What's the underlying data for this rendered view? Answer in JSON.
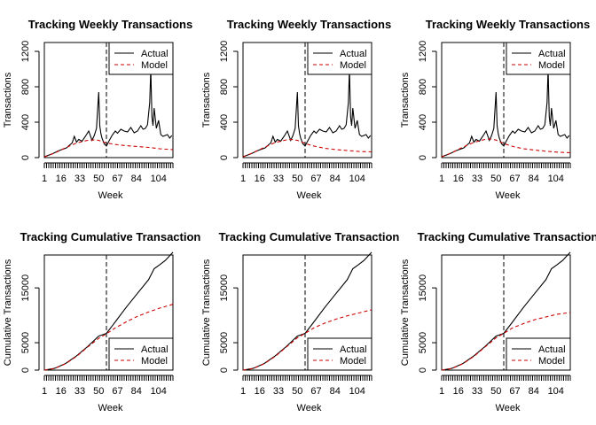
{
  "figure": {
    "background": "#ffffff"
  },
  "legend_labels": {
    "actual": "Actual",
    "model": "Model"
  },
  "colors": {
    "actual": "#000000",
    "model": "#cc0000",
    "split": "#000000"
  },
  "chart_data": [
    {
      "type": "line",
      "panel": "weekly-1",
      "title": "Tracking Weekly Transactions",
      "xlabel": "Week",
      "ylabel": "Transactions",
      "xticks": [
        1,
        16,
        33,
        50,
        67,
        84,
        104
      ],
      "yticks": [
        0,
        400,
        800,
        1200
      ],
      "xlim": [
        1,
        117
      ],
      "ylim": [
        0,
        1300
      ],
      "calibration_end_week": 57,
      "legend_position": "top-right",
      "series": [
        {
          "name": "Actual",
          "x": [
            1,
            5,
            9,
            13,
            17,
            21,
            24,
            26,
            28,
            30,
            32,
            35,
            38,
            41,
            44,
            46,
            48,
            50,
            51,
            52,
            53,
            55,
            57,
            59,
            62,
            65,
            67,
            70,
            73,
            76,
            79,
            82,
            85,
            88,
            90,
            92,
            94,
            96,
            97,
            98,
            99,
            100,
            102,
            104,
            106,
            108,
            110,
            112,
            114,
            116
          ],
          "values": [
            10,
            28,
            48,
            72,
            92,
            110,
            145,
            165,
            240,
            175,
            205,
            185,
            240,
            300,
            195,
            250,
            330,
            740,
            360,
            270,
            220,
            155,
            130,
            180,
            250,
            300,
            275,
            320,
            300,
            290,
            340,
            280,
            300,
            360,
            320,
            330,
            370,
            620,
            1000,
            460,
            360,
            560,
            330,
            420,
            260,
            240,
            250,
            260,
            220,
            250
          ]
        },
        {
          "name": "Model",
          "x": [
            1,
            10,
            20,
            30,
            40,
            45,
            50,
            53,
            57,
            62,
            67,
            75,
            85,
            95,
            105,
            117
          ],
          "values": [
            8,
            50,
            110,
            165,
            195,
            200,
            195,
            180,
            165,
            155,
            145,
            135,
            125,
            115,
            100,
            90
          ]
        }
      ]
    },
    {
      "type": "line",
      "panel": "weekly-2",
      "title": "Tracking Weekly Transactions",
      "xlabel": "Week",
      "ylabel": "Transactions",
      "xticks": [
        1,
        16,
        33,
        50,
        67,
        84,
        104
      ],
      "yticks": [
        0,
        400,
        800,
        1200
      ],
      "xlim": [
        1,
        117
      ],
      "ylim": [
        0,
        1300
      ],
      "calibration_end_week": 57,
      "legend_position": "top-right",
      "series": [
        {
          "name": "Actual",
          "x": [
            1,
            5,
            9,
            13,
            17,
            21,
            24,
            26,
            28,
            30,
            32,
            35,
            38,
            41,
            44,
            46,
            48,
            50,
            51,
            52,
            53,
            55,
            57,
            59,
            62,
            65,
            67,
            70,
            73,
            76,
            79,
            82,
            85,
            88,
            90,
            92,
            94,
            96,
            97,
            98,
            99,
            100,
            102,
            104,
            106,
            108,
            110,
            112,
            114,
            116
          ],
          "values": [
            10,
            28,
            48,
            72,
            92,
            110,
            145,
            165,
            240,
            175,
            205,
            185,
            240,
            300,
            195,
            250,
            330,
            740,
            360,
            270,
            220,
            155,
            130,
            180,
            250,
            300,
            275,
            320,
            300,
            290,
            340,
            280,
            300,
            360,
            320,
            330,
            370,
            620,
            1000,
            460,
            360,
            560,
            330,
            420,
            260,
            240,
            250,
            260,
            220,
            250
          ]
        },
        {
          "name": "Model",
          "x": [
            1,
            10,
            20,
            30,
            40,
            45,
            50,
            53,
            57,
            62,
            67,
            75,
            85,
            95,
            105,
            117
          ],
          "values": [
            8,
            55,
            115,
            170,
            200,
            205,
            195,
            180,
            160,
            140,
            125,
            105,
            90,
            80,
            70,
            65
          ]
        }
      ]
    },
    {
      "type": "line",
      "panel": "weekly-3",
      "title": "Tracking Weekly Transactions",
      "xlabel": "Week",
      "ylabel": "Transactions",
      "xticks": [
        1,
        16,
        33,
        50,
        67,
        84,
        104
      ],
      "yticks": [
        0,
        400,
        800,
        1200
      ],
      "xlim": [
        1,
        117
      ],
      "ylim": [
        0,
        1300
      ],
      "calibration_end_week": 57,
      "legend_position": "top-right",
      "series": [
        {
          "name": "Actual",
          "x": [
            1,
            5,
            9,
            13,
            17,
            21,
            24,
            26,
            28,
            30,
            32,
            35,
            38,
            41,
            44,
            46,
            48,
            50,
            51,
            52,
            53,
            55,
            57,
            59,
            62,
            65,
            67,
            70,
            73,
            76,
            79,
            82,
            85,
            88,
            90,
            92,
            94,
            96,
            97,
            98,
            99,
            100,
            102,
            104,
            106,
            108,
            110,
            112,
            114,
            116
          ],
          "values": [
            10,
            28,
            48,
            72,
            92,
            110,
            145,
            165,
            240,
            175,
            205,
            185,
            240,
            300,
            195,
            250,
            330,
            740,
            360,
            270,
            220,
            155,
            130,
            180,
            250,
            300,
            275,
            320,
            300,
            290,
            340,
            280,
            300,
            360,
            320,
            330,
            370,
            620,
            1000,
            460,
            360,
            560,
            330,
            420,
            260,
            240,
            250,
            260,
            220,
            250
          ]
        },
        {
          "name": "Model",
          "x": [
            1,
            10,
            20,
            30,
            40,
            45,
            50,
            53,
            57,
            62,
            67,
            75,
            85,
            95,
            105,
            117
          ],
          "values": [
            8,
            55,
            118,
            172,
            205,
            210,
            198,
            180,
            160,
            138,
            120,
            100,
            85,
            72,
            62,
            55
          ]
        }
      ]
    },
    {
      "type": "line",
      "panel": "cumulative-1",
      "title": "Tracking Cumulative Transaction",
      "xlabel": "Week",
      "ylabel": "Cumulative Transactions",
      "xticks": [
        1,
        16,
        33,
        50,
        67,
        84,
        104
      ],
      "yticks": [
        0,
        5000,
        15000
      ],
      "xlim": [
        1,
        117
      ],
      "ylim": [
        0,
        21000
      ],
      "calibration_end_week": 57,
      "legend_position": "bottom-right",
      "series": [
        {
          "name": "Actual",
          "x": [
            1,
            10,
            20,
            30,
            40,
            50,
            57,
            65,
            75,
            85,
            95,
            100,
            105,
            110,
            117
          ],
          "values": [
            0,
            300,
            1200,
            2600,
            4300,
            6200,
            6700,
            8800,
            11500,
            14000,
            16500,
            18500,
            19200,
            20000,
            21500
          ]
        },
        {
          "name": "Model",
          "x": [
            1,
            10,
            20,
            30,
            40,
            50,
            57,
            65,
            75,
            85,
            95,
            105,
            117
          ],
          "values": [
            0,
            280,
            1150,
            2500,
            4200,
            5800,
            6600,
            7700,
            8800,
            9800,
            10600,
            11300,
            12000
          ]
        }
      ]
    },
    {
      "type": "line",
      "panel": "cumulative-2",
      "title": "Tracking Cumulative Transaction",
      "xlabel": "Week",
      "ylabel": "Cumulative Transactions",
      "xticks": [
        1,
        16,
        33,
        50,
        67,
        84,
        104
      ],
      "yticks": [
        0,
        5000,
        15000
      ],
      "xlim": [
        1,
        117
      ],
      "ylim": [
        0,
        21000
      ],
      "calibration_end_week": 57,
      "legend_position": "bottom-right",
      "series": [
        {
          "name": "Actual",
          "x": [
            1,
            10,
            20,
            30,
            40,
            50,
            57,
            65,
            75,
            85,
            95,
            100,
            105,
            110,
            117
          ],
          "values": [
            0,
            300,
            1200,
            2600,
            4300,
            6200,
            6700,
            8800,
            11500,
            14000,
            16500,
            18500,
            19200,
            20000,
            21500
          ]
        },
        {
          "name": "Model",
          "x": [
            1,
            10,
            20,
            30,
            40,
            50,
            57,
            65,
            75,
            85,
            95,
            105,
            117
          ],
          "values": [
            0,
            280,
            1150,
            2500,
            4200,
            5900,
            6700,
            7700,
            8600,
            9300,
            9900,
            10400,
            11000
          ]
        }
      ]
    },
    {
      "type": "line",
      "panel": "cumulative-3",
      "title": "Tracking Cumulative Transaction",
      "xlabel": "Week",
      "ylabel": "Cumulative Transactions",
      "xticks": [
        1,
        16,
        33,
        50,
        67,
        84,
        104
      ],
      "yticks": [
        0,
        5000,
        15000
      ],
      "xlim": [
        1,
        117
      ],
      "ylim": [
        0,
        21000
      ],
      "calibration_end_week": 57,
      "legend_position": "bottom-right",
      "series": [
        {
          "name": "Actual",
          "x": [
            1,
            10,
            20,
            30,
            40,
            50,
            57,
            65,
            75,
            85,
            95,
            100,
            105,
            110,
            117
          ],
          "values": [
            0,
            300,
            1200,
            2600,
            4300,
            6200,
            6700,
            8800,
            11500,
            14000,
            16500,
            18500,
            19200,
            20000,
            21500
          ]
        },
        {
          "name": "Model",
          "x": [
            1,
            10,
            20,
            30,
            40,
            50,
            57,
            65,
            75,
            85,
            95,
            105,
            117
          ],
          "values": [
            0,
            280,
            1150,
            2500,
            4200,
            5900,
            6700,
            7700,
            8500,
            9200,
            9700,
            10200,
            10500
          ]
        }
      ]
    }
  ]
}
